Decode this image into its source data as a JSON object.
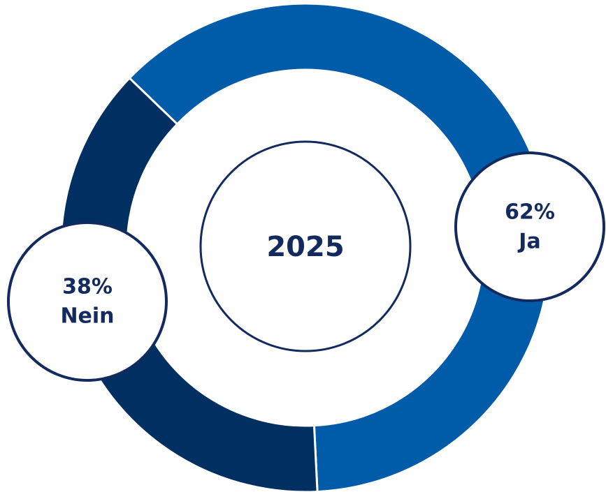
{
  "chart_data": {
    "type": "donut",
    "center_label": "2025",
    "categories": [
      "Ja",
      "Nein"
    ],
    "values": [
      62,
      38
    ],
    "value_labels": [
      "62%",
      "38%"
    ],
    "colors": [
      "#005ca9",
      "#002f62"
    ]
  }
}
